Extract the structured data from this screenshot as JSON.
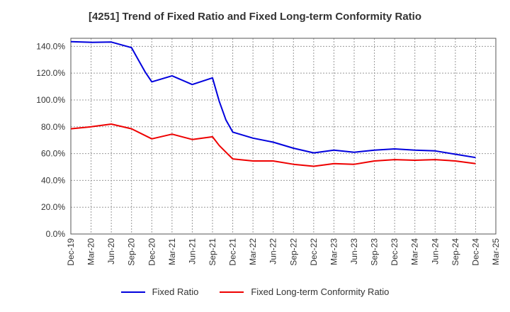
{
  "chart_data": {
    "type": "line",
    "title": "[4251]  Trend of Fixed Ratio and Fixed Long-term Conformity Ratio",
    "xlabel": "",
    "ylabel": "",
    "ylim": [
      0,
      146
    ],
    "yticks": [
      0,
      20,
      40,
      60,
      80,
      100,
      120,
      140
    ],
    "ytick_labels": [
      "0.0%",
      "20.0%",
      "40.0%",
      "60.0%",
      "80.0%",
      "100.0%",
      "120.0%",
      "140.0%"
    ],
    "x_ticks": [
      "Dec-19",
      "Mar-20",
      "Jun-20",
      "Sep-20",
      "Dec-20",
      "Mar-21",
      "Jun-21",
      "Sep-21",
      "Dec-21",
      "Mar-22",
      "Jun-22",
      "Sep-22",
      "Dec-22",
      "Mar-23",
      "Jun-23",
      "Sep-23",
      "Dec-23",
      "Mar-24",
      "Jun-24",
      "Sep-24",
      "Dec-24",
      "Mar-25"
    ],
    "grid": true,
    "legend_position": "bottom",
    "series": [
      {
        "name": "Fixed Ratio",
        "color": "#0000dd",
        "x": [
          "Dec-19",
          "Mar-20",
          "Jun-20",
          "Sep-20",
          "Oct-20",
          "Nov-20",
          "Dec-20",
          "Mar-21",
          "Jun-21",
          "Sep-21",
          "Oct-21",
          "Nov-21",
          "Dec-21",
          "Mar-22",
          "Jun-22",
          "Sep-22",
          "Dec-22",
          "Mar-23",
          "Jun-23",
          "Sep-23",
          "Dec-23",
          "Mar-24",
          "Jun-24",
          "Sep-24",
          "Dec-24"
        ],
        "values": [
          143.5,
          143.0,
          143.2,
          139.0,
          130.0,
          121.0,
          113.5,
          118.0,
          111.5,
          116.5,
          99.0,
          85.0,
          76.0,
          71.5,
          68.5,
          64.0,
          60.5,
          62.5,
          61.0,
          62.5,
          63.5,
          62.5,
          62.0,
          59.5,
          57.0
        ]
      },
      {
        "name": "Fixed Long-term Conformity Ratio",
        "color": "#ee0000",
        "x": [
          "Dec-19",
          "Mar-20",
          "Jun-20",
          "Sep-20",
          "Dec-20",
          "Mar-21",
          "Jun-21",
          "Sep-21",
          "Oct-21",
          "Nov-21",
          "Dec-21",
          "Mar-22",
          "Jun-22",
          "Sep-22",
          "Dec-22",
          "Mar-23",
          "Jun-23",
          "Sep-23",
          "Dec-23",
          "Mar-24",
          "Jun-24",
          "Sep-24",
          "Dec-24"
        ],
        "values": [
          78.5,
          80.0,
          82.0,
          78.5,
          71.0,
          74.5,
          70.5,
          72.5,
          66.0,
          61.0,
          56.0,
          54.5,
          54.5,
          52.0,
          50.5,
          52.5,
          52.0,
          54.5,
          55.5,
          55.0,
          55.5,
          54.5,
          52.5
        ]
      }
    ]
  }
}
